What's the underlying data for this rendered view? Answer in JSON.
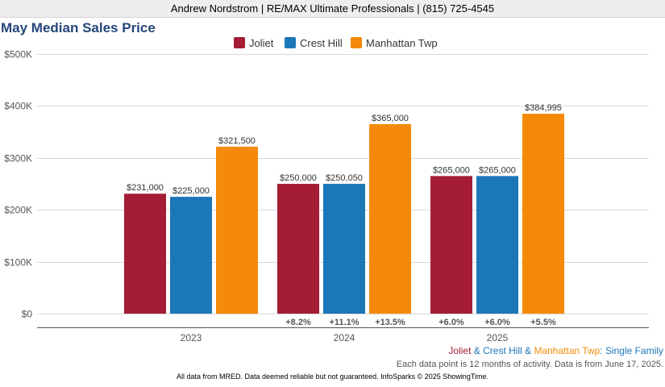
{
  "header": {
    "text": "Andrew Nordstrom | RE/MAX Ultimate Professionals | (815) 725-4545"
  },
  "chart_data": {
    "type": "bar",
    "title": "May Median Sales Price",
    "categories": [
      "2023",
      "2024",
      "2025"
    ],
    "series": [
      {
        "name": "Joliet",
        "color": "#a51d35",
        "values": [
          231000,
          250000,
          265000
        ],
        "labels": [
          "$231,000",
          "$250,000",
          "$265,000"
        ],
        "changes": [
          "",
          "+8.2%",
          "+6.0%"
        ]
      },
      {
        "name": "Crest Hill",
        "color": "#1a77b8",
        "values": [
          225000,
          250050,
          265000
        ],
        "labels": [
          "$225,000",
          "$250,050",
          "$265,000"
        ],
        "changes": [
          "",
          "+11.1%",
          "+6.0%"
        ]
      },
      {
        "name": "Manhattan Twp",
        "color": "#f58a09",
        "values": [
          321500,
          365000,
          384995
        ],
        "labels": [
          "$321,500",
          "$365,000",
          "$384,995"
        ],
        "changes": [
          "",
          "+13.5%",
          "+5.5%"
        ]
      }
    ],
    "yticks": [
      0,
      100000,
      200000,
      300000,
      400000,
      500000
    ],
    "ytick_labels": [
      "$0",
      "$100K",
      "$200K",
      "$300K",
      "$400K",
      "$500K"
    ],
    "ylim": [
      0,
      500000
    ],
    "grid": true,
    "legend_position": "top-center"
  },
  "subtitle": {
    "parts": [
      {
        "text": "Joliet",
        "color": "#a51d35"
      },
      {
        "text": " & ",
        "color": "#1a77b8"
      },
      {
        "text": "Crest Hill",
        "color": "#1a77b8"
      },
      {
        "text": " & ",
        "color": "#1a77b8"
      },
      {
        "text": "Manhattan Twp",
        "color": "#f58a09"
      },
      {
        "text": ": Single Family",
        "color": "#1a77b8"
      }
    ]
  },
  "note": "Each data point is 12 months of activity. Data is from June 17, 2025.",
  "footer": "All data from MRED. Data deemed reliable but not guaranteed. InfoSparks © 2025 ShowingTime."
}
